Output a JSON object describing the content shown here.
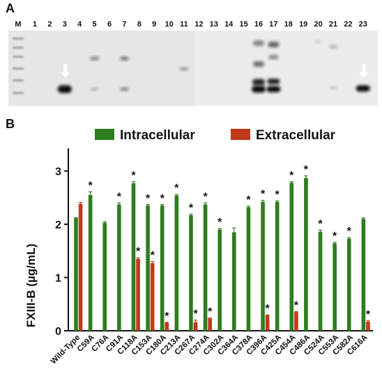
{
  "panels": {
    "a_label": "A",
    "b_label": "B"
  },
  "blot": {
    "marker_label": "M",
    "lanes": [
      "1",
      "2",
      "3",
      "4",
      "5",
      "6",
      "7",
      "8",
      "9",
      "10",
      "11",
      "12",
      "13",
      "14",
      "15",
      "16",
      "17",
      "18",
      "19",
      "20",
      "21",
      "22",
      "23"
    ],
    "arrow_lanes": [
      "3",
      "23"
    ],
    "band_color": "#0a0a0a",
    "background_color": "#e6e6e6"
  },
  "chart_data": {
    "type": "bar",
    "ylabel": "FXIII-B (µg/mL)",
    "ylim": [
      0,
      3.4
    ],
    "yticks": [
      0,
      1,
      2,
      3
    ],
    "grid": false,
    "legend_position": "top",
    "categories": [
      "Wild-Type",
      "C59A",
      "C76A",
      "C91A",
      "C118A",
      "C153A",
      "C180A",
      "C213A",
      "C267A",
      "C274A",
      "C302A",
      "C364A",
      "C378A",
      "C396A",
      "C425A",
      "C454A",
      "C486A",
      "C524A",
      "C553A",
      "C582A",
      "C616A"
    ],
    "series": [
      {
        "name": "Intracellular",
        "color": "#2e7d1e",
        "values": [
          2.13,
          2.55,
          2.03,
          2.37,
          2.77,
          2.35,
          2.35,
          2.54,
          2.17,
          2.37,
          1.9,
          1.85,
          2.32,
          2.42,
          2.42,
          2.78,
          2.87,
          1.86,
          1.64,
          1.73,
          2.1
        ],
        "errors": [
          0,
          0.06,
          0.02,
          0.03,
          0.03,
          0.02,
          0.02,
          0.02,
          0.02,
          0.03,
          0.02,
          0.08,
          0.02,
          0.03,
          0.02,
          0.02,
          0.04,
          0.03,
          0.02,
          0.02,
          0.02
        ],
        "significant": [
          false,
          true,
          false,
          true,
          true,
          true,
          true,
          true,
          true,
          true,
          true,
          false,
          true,
          true,
          true,
          true,
          true,
          true,
          true,
          true,
          false
        ]
      },
      {
        "name": "Extracellular",
        "color": "#c0391b",
        "values": [
          2.38,
          0,
          0,
          0,
          1.35,
          1.27,
          0.15,
          0,
          0.16,
          0.23,
          0,
          0,
          0,
          0.29,
          0,
          0.35,
          0,
          0,
          0,
          0,
          0.17
        ],
        "errors": [
          0.03,
          0,
          0,
          0,
          0.02,
          0.03,
          0.01,
          0,
          0.04,
          0.01,
          0,
          0,
          0,
          0.01,
          0,
          0.01,
          0,
          0,
          0,
          0,
          0.02
        ],
        "significant": [
          false,
          false,
          false,
          false,
          true,
          true,
          true,
          false,
          true,
          true,
          false,
          false,
          false,
          true,
          false,
          true,
          false,
          false,
          false,
          false,
          true
        ]
      }
    ],
    "significance_marker": "*"
  }
}
